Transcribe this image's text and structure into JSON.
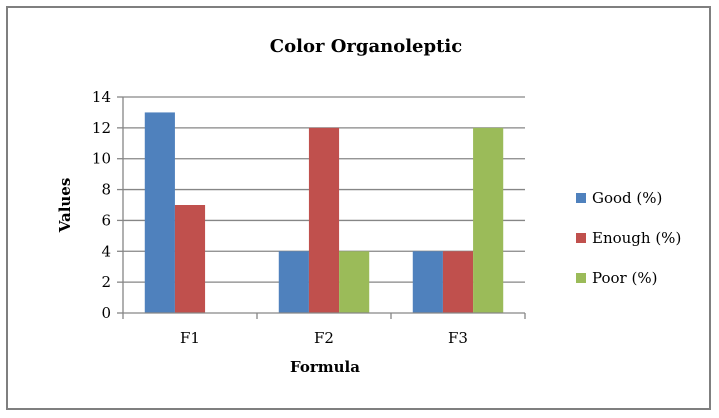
{
  "chart_data": {
    "type": "bar",
    "title": "Color Organoleptic",
    "xlabel": "Formula",
    "ylabel": "Values",
    "categories": [
      "F1",
      "F2",
      "F3"
    ],
    "series": [
      {
        "name": "Good (%)",
        "values": [
          13,
          4,
          4
        ],
        "color": "#4f81bd"
      },
      {
        "name": "Enough (%)",
        "values": [
          7,
          12,
          4
        ],
        "color": "#c0504d"
      },
      {
        "name": "Poor (%)",
        "values": [
          0,
          4,
          12
        ],
        "color": "#9bbb59"
      }
    ],
    "ylim": [
      0,
      14
    ],
    "yticks": [
      0,
      2,
      4,
      6,
      8,
      10,
      12,
      14
    ],
    "grid": true,
    "legend": "right"
  }
}
